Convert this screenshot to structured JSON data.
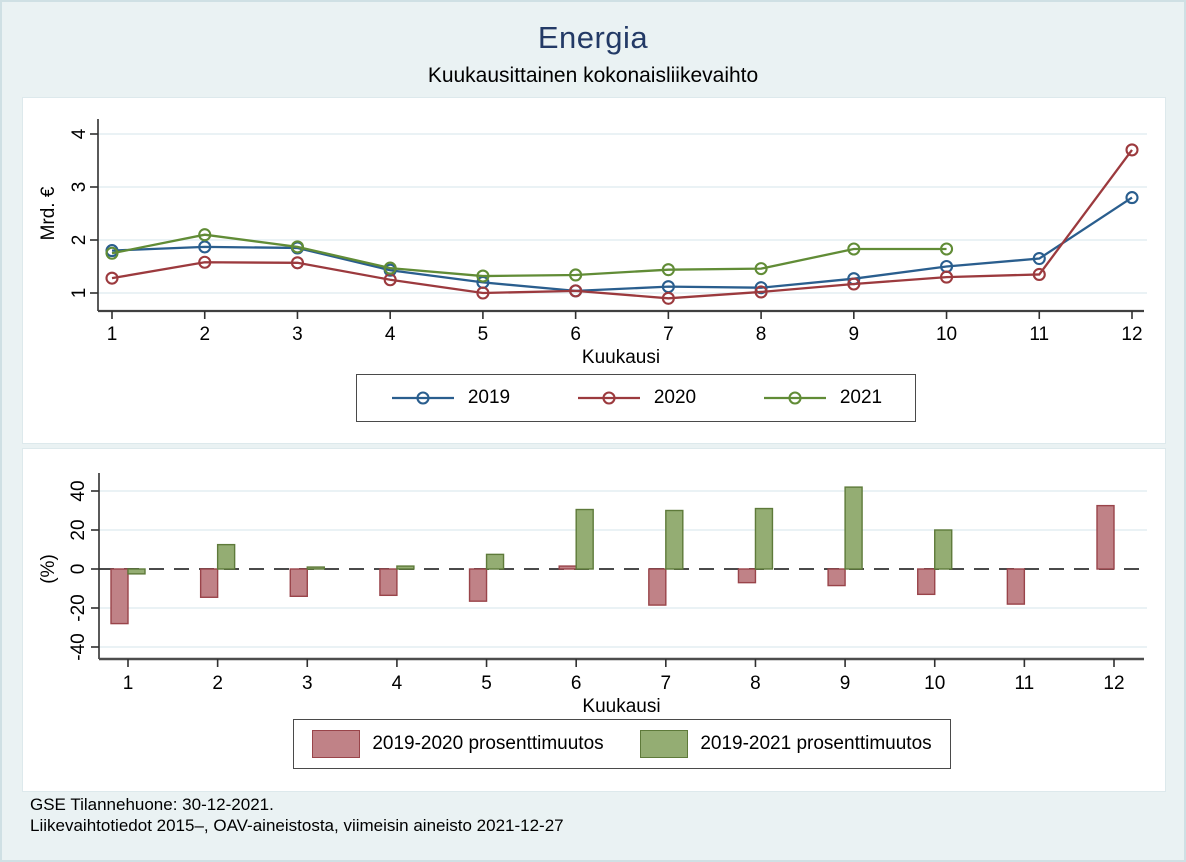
{
  "page": {
    "title": "Energia",
    "subtitle": "Kuukausittainen kokonaisliikevaihto",
    "footer_line1": "GSE Tilannehuone: 30-12-2021.",
    "footer_line2": "Liikevaihtotiedot 2015–, OAV-aineistosta, viimeisin aineisto 2021-12-27",
    "colors": {
      "background": "#eaf2f3",
      "panel": "#ffffff",
      "title_navy": "#233a66",
      "grid": "#e4edf2",
      "axis": "#404040",
      "zero_dash": "#4a4a4a"
    }
  },
  "chart_data": [
    {
      "type": "line",
      "name": "monthly-revenue-lines",
      "xlabel": "Kuukausi",
      "ylabel": "Mrd. €",
      "x": [
        1,
        2,
        3,
        4,
        5,
        6,
        7,
        8,
        9,
        10,
        11,
        12
      ],
      "yticks": [
        1,
        2,
        3,
        4
      ],
      "ylim": [
        0.65,
        4.3
      ],
      "grid": true,
      "legend_position": "bottom",
      "marker": "hollow-circle",
      "series": [
        {
          "name": "2019",
          "color": "#2a5e8e",
          "values": [
            1.8,
            1.87,
            1.85,
            1.43,
            1.2,
            1.04,
            1.12,
            1.1,
            1.27,
            1.5,
            1.65,
            2.8
          ]
        },
        {
          "name": "2020",
          "color": "#9c3a3e",
          "values": [
            1.28,
            1.58,
            1.57,
            1.25,
            1.0,
            1.04,
            0.9,
            1.02,
            1.17,
            1.3,
            1.35,
            3.7
          ]
        },
        {
          "name": "2021",
          "color": "#618c36",
          "values": [
            1.75,
            2.1,
            1.87,
            1.47,
            1.32,
            1.34,
            1.44,
            1.46,
            1.83,
            1.83,
            null,
            null
          ]
        }
      ]
    },
    {
      "type": "bar",
      "name": "percent-change-bars",
      "xlabel": "Kuukausi",
      "ylabel": "(%)",
      "categories": [
        1,
        2,
        3,
        4,
        5,
        6,
        7,
        8,
        9,
        10,
        11,
        12
      ],
      "yticks": [
        -40,
        -20,
        0,
        20,
        40
      ],
      "ylim": [
        -50,
        48
      ],
      "grid": true,
      "zero_line": "dashed",
      "legend_position": "bottom",
      "series": [
        {
          "name": "2019-2020 prosenttimuutos",
          "fill": "#c08287",
          "stroke": "#99444a",
          "values": [
            -28,
            -14.5,
            -14,
            -13.5,
            -16.5,
            1.5,
            -18.5,
            -7,
            -8.5,
            -13,
            -18,
            32.5
          ]
        },
        {
          "name": "2019-2021 prosenttimuutos",
          "fill": "#94ad73",
          "stroke": "#5e7a3a",
          "values": [
            -2.5,
            12.5,
            1,
            1.5,
            7.5,
            30.5,
            30,
            31,
            42,
            20,
            null,
            null
          ]
        }
      ]
    }
  ]
}
